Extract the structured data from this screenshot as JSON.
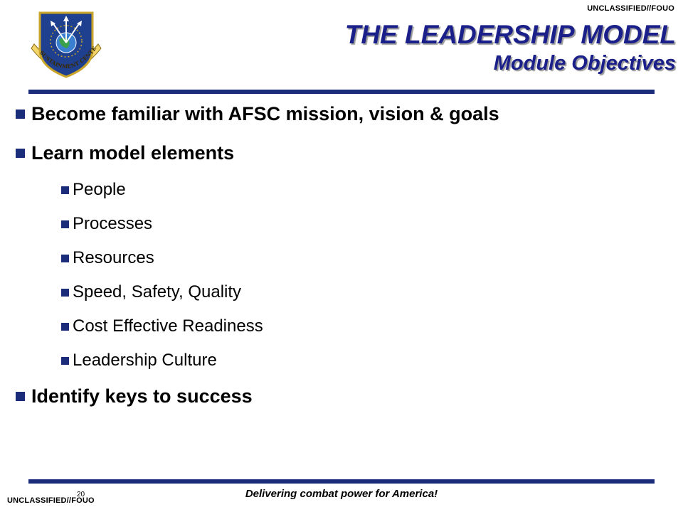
{
  "classification": {
    "top": "UNCLASSIFIED//FOUO",
    "bottom": "UNCLASSIFIED//FOUO"
  },
  "logo": {
    "text": "AF SUSTAINMENT CENTER"
  },
  "header": {
    "title": "THE LEADERSHIP MODEL",
    "subtitle": "Module Objectives"
  },
  "bullets": [
    {
      "text": "Become familiar with AFSC mission, vision & goals"
    },
    {
      "text": "Learn model elements"
    },
    {
      "text": "Identify keys to success"
    }
  ],
  "sub_bullets": [
    {
      "text": "People"
    },
    {
      "text": "Processes"
    },
    {
      "text": "Resources"
    },
    {
      "text": "Speed, Safety, Quality"
    },
    {
      "text": "Cost Effective Readiness"
    },
    {
      "text": "Leadership Culture"
    }
  ],
  "footer": {
    "slogan": "Delivering combat power for America!",
    "page_number": "20"
  },
  "colors": {
    "title": "#1a1f8a",
    "bullet": "#1b2d7a",
    "rule": "#1b2d7a"
  }
}
